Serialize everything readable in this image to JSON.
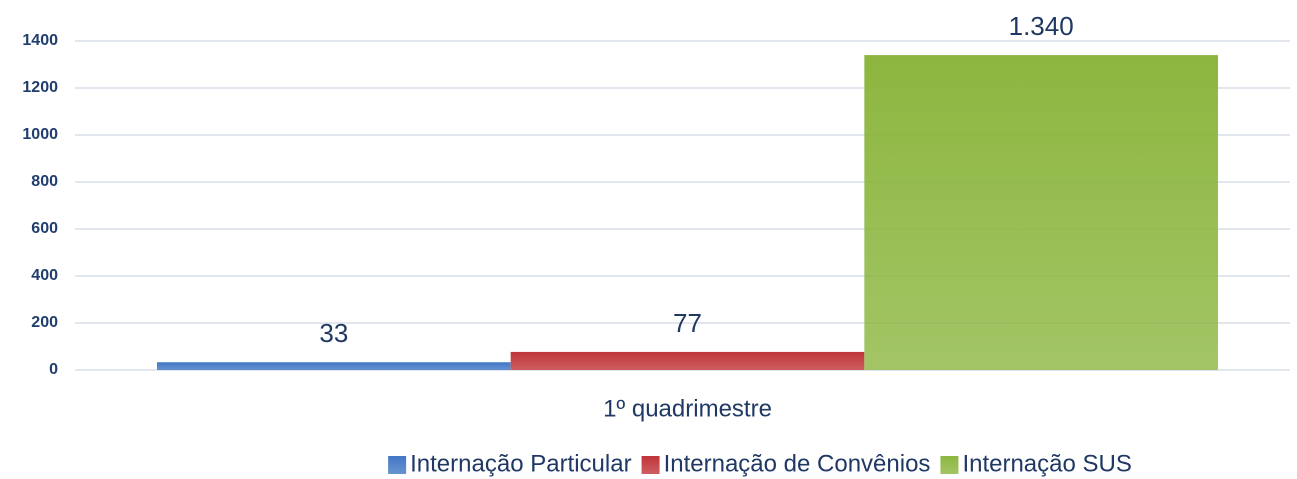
{
  "chart_data": {
    "type": "bar",
    "categories": [
      "1º quadrimestre"
    ],
    "series": [
      {
        "name": "Internação Particular",
        "color": "#4277c5",
        "values": [
          33
        ]
      },
      {
        "name": "Internação de Convênios",
        "color": "#c0353a",
        "values": [
          77
        ]
      },
      {
        "name": "Internação SUS",
        "color": "#8cb63f",
        "values": [
          1340
        ],
        "value_labels": [
          "1.340"
        ]
      }
    ],
    "ylim": [
      0,
      1400
    ],
    "yticks": [
      0,
      200,
      400,
      600,
      800,
      1000,
      1200,
      1400
    ],
    "grid": true
  }
}
